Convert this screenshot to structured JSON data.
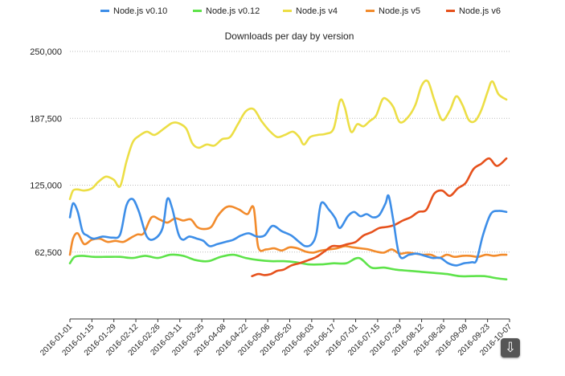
{
  "chart_data": {
    "type": "line",
    "title": "Downloads per day by version",
    "xlabel": "",
    "ylabel": "",
    "ylim": [
      0,
      250000
    ],
    "yticks": [
      62500,
      125000,
      187500,
      250000
    ],
    "ytick_labels": [
      "62,500",
      "125,000",
      "187,500",
      "250,000"
    ],
    "xlim": [
      "2016-01-01",
      "2016-10-07"
    ],
    "xtick_labels": [
      "2016-01-01",
      "2016-01-15",
      "2016-01-29",
      "2016-02-12",
      "2016-02-26",
      "2016-03-11",
      "2016-03-25",
      "2016-04-08",
      "2016-04-22",
      "2016-05-06",
      "2016-05-20",
      "2016-06-03",
      "2016-06-17",
      "2016-07-01",
      "2016-07-15",
      "2016-07-29",
      "2016-08-12",
      "2016-08-26",
      "2016-09-09",
      "2016-09-23",
      "2016-10-07"
    ],
    "grid": "horizontal dotted",
    "legend_position": "top",
    "series": [
      {
        "name": "Node.js v0.10",
        "color": "#3d8ee8",
        "x": [
          "2016-01-01",
          "2016-01-03",
          "2016-01-06",
          "2016-01-09",
          "2016-01-12",
          "2016-01-16",
          "2016-01-22",
          "2016-01-28",
          "2016-02-02",
          "2016-02-06",
          "2016-02-10",
          "2016-02-14",
          "2016-02-19",
          "2016-02-24",
          "2016-02-29",
          "2016-03-03",
          "2016-03-06",
          "2016-03-10",
          "2016-03-13",
          "2016-03-17",
          "2016-03-22",
          "2016-03-26",
          "2016-03-30",
          "2016-04-04",
          "2016-04-09",
          "2016-04-14",
          "2016-04-19",
          "2016-04-24",
          "2016-04-29",
          "2016-05-04",
          "2016-05-09",
          "2016-05-15",
          "2016-05-21",
          "2016-05-26",
          "2016-05-30",
          "2016-06-03",
          "2016-06-06",
          "2016-06-09",
          "2016-06-14",
          "2016-06-18",
          "2016-06-21",
          "2016-06-26",
          "2016-06-30",
          "2016-07-04",
          "2016-07-08",
          "2016-07-12",
          "2016-07-16",
          "2016-07-20",
          "2016-07-22",
          "2016-07-25",
          "2016-07-29",
          "2016-08-04",
          "2016-08-09",
          "2016-08-14",
          "2016-08-19",
          "2016-08-24",
          "2016-08-29",
          "2016-09-03",
          "2016-09-08",
          "2016-09-13",
          "2016-09-16",
          "2016-09-20",
          "2016-09-25",
          "2016-09-30",
          "2016-10-05"
        ],
        "y": [
          95000,
          108000,
          100000,
          82000,
          78000,
          75000,
          77000,
          76000,
          79000,
          106000,
          112000,
          100000,
          77000,
          75000,
          85000,
          112000,
          104000,
          80000,
          74000,
          77000,
          75000,
          73000,
          68000,
          70000,
          72000,
          74000,
          78000,
          80000,
          77000,
          78000,
          87000,
          82000,
          78000,
          72000,
          68000,
          70000,
          80000,
          108000,
          102000,
          94000,
          85000,
          96000,
          100000,
          96000,
          98000,
          95000,
          97000,
          108000,
          115000,
          92000,
          59000,
          60000,
          61000,
          59000,
          57000,
          57000,
          52000,
          50000,
          52000,
          53000,
          55000,
          78000,
          98000,
          101000,
          100000
        ]
      },
      {
        "name": "Node.js v0.12",
        "color": "#5ee34a",
        "x": [
          "2016-01-01",
          "2016-01-04",
          "2016-01-09",
          "2016-01-16",
          "2016-01-24",
          "2016-02-02",
          "2016-02-10",
          "2016-02-18",
          "2016-02-26",
          "2016-03-05",
          "2016-03-13",
          "2016-03-21",
          "2016-03-29",
          "2016-04-06",
          "2016-04-14",
          "2016-04-22",
          "2016-04-30",
          "2016-05-08",
          "2016-05-16",
          "2016-05-24",
          "2016-06-01",
          "2016-06-09",
          "2016-06-17",
          "2016-06-25",
          "2016-07-03",
          "2016-07-11",
          "2016-07-19",
          "2016-07-27",
          "2016-08-04",
          "2016-08-12",
          "2016-08-20",
          "2016-08-28",
          "2016-09-05",
          "2016-09-13",
          "2016-09-21",
          "2016-09-29",
          "2016-10-05"
        ],
        "y": [
          52000,
          58000,
          59000,
          58000,
          58000,
          58000,
          57000,
          59000,
          57000,
          60000,
          59000,
          55000,
          54000,
          58000,
          60000,
          57000,
          55000,
          54000,
          54000,
          53000,
          51000,
          51000,
          52000,
          52000,
          57000,
          48000,
          48000,
          46000,
          45000,
          44000,
          43000,
          42000,
          40000,
          40000,
          40000,
          38000,
          37000
        ]
      },
      {
        "name": "Node.js v4",
        "color": "#ecde45",
        "x": [
          "2016-01-01",
          "2016-01-03",
          "2016-01-06",
          "2016-01-10",
          "2016-01-15",
          "2016-01-19",
          "2016-01-24",
          "2016-01-29",
          "2016-02-02",
          "2016-02-06",
          "2016-02-10",
          "2016-02-14",
          "2016-02-19",
          "2016-02-24",
          "2016-03-01",
          "2016-03-06",
          "2016-03-10",
          "2016-03-15",
          "2016-03-19",
          "2016-03-23",
          "2016-03-28",
          "2016-04-02",
          "2016-04-07",
          "2016-04-12",
          "2016-04-17",
          "2016-04-22",
          "2016-04-27",
          "2016-05-02",
          "2016-05-07",
          "2016-05-12",
          "2016-05-17",
          "2016-05-22",
          "2016-05-26",
          "2016-05-29",
          "2016-06-02",
          "2016-06-07",
          "2016-06-12",
          "2016-06-17",
          "2016-06-21",
          "2016-06-24",
          "2016-06-28",
          "2016-07-02",
          "2016-07-06",
          "2016-07-10",
          "2016-07-14",
          "2016-07-18",
          "2016-07-21",
          "2016-07-25",
          "2016-07-29",
          "2016-08-03",
          "2016-08-08",
          "2016-08-12",
          "2016-08-16",
          "2016-08-20",
          "2016-08-25",
          "2016-08-30",
          "2016-09-03",
          "2016-09-07",
          "2016-09-11",
          "2016-09-15",
          "2016-09-19",
          "2016-09-23",
          "2016-09-26",
          "2016-09-30",
          "2016-10-05"
        ],
        "y": [
          112000,
          120000,
          121000,
          120000,
          122000,
          128000,
          133000,
          130000,
          124000,
          147000,
          165000,
          171000,
          175000,
          172000,
          178000,
          183000,
          183000,
          178000,
          164000,
          160000,
          163000,
          162000,
          168000,
          170000,
          182000,
          194000,
          196000,
          185000,
          176000,
          170000,
          172000,
          175000,
          170000,
          163000,
          170000,
          172000,
          173000,
          178000,
          204000,
          198000,
          175000,
          182000,
          180000,
          185000,
          190000,
          205000,
          205000,
          198000,
          184000,
          188000,
          200000,
          218000,
          222000,
          205000,
          186000,
          195000,
          208000,
          200000,
          186000,
          185000,
          195000,
          212000,
          222000,
          210000,
          205000
        ]
      },
      {
        "name": "Node.js v5",
        "color": "#f28b2c",
        "x": [
          "2016-01-01",
          "2016-01-03",
          "2016-01-06",
          "2016-01-10",
          "2016-01-15",
          "2016-01-20",
          "2016-01-25",
          "2016-01-30",
          "2016-02-04",
          "2016-02-09",
          "2016-02-13",
          "2016-02-17",
          "2016-02-22",
          "2016-02-27",
          "2016-03-03",
          "2016-03-08",
          "2016-03-13",
          "2016-03-18",
          "2016-03-22",
          "2016-03-26",
          "2016-03-31",
          "2016-04-04",
          "2016-04-09",
          "2016-04-13",
          "2016-04-18",
          "2016-04-23",
          "2016-04-27",
          "2016-04-30",
          "2016-05-05",
          "2016-05-10",
          "2016-05-15",
          "2016-05-20",
          "2016-05-25",
          "2016-05-30",
          "2016-06-04",
          "2016-06-09",
          "2016-06-14",
          "2016-06-19",
          "2016-06-24",
          "2016-06-29",
          "2016-07-04",
          "2016-07-09",
          "2016-07-14",
          "2016-07-19",
          "2016-07-24",
          "2016-07-29",
          "2016-08-03",
          "2016-08-08",
          "2016-08-13",
          "2016-08-18",
          "2016-08-23",
          "2016-08-28",
          "2016-09-02",
          "2016-09-07",
          "2016-09-12",
          "2016-09-17",
          "2016-09-22",
          "2016-09-27",
          "2016-10-02",
          "2016-10-05"
        ],
        "y": [
          60000,
          75000,
          80000,
          70000,
          74000,
          75000,
          72000,
          73000,
          72000,
          76000,
          79000,
          80000,
          95000,
          93000,
          90000,
          94000,
          92000,
          93000,
          86000,
          84000,
          86000,
          96000,
          104000,
          105000,
          102000,
          98000,
          104000,
          67000,
          65000,
          66000,
          64000,
          67000,
          66000,
          63000,
          62000,
          64000,
          65000,
          66000,
          68000,
          67000,
          66000,
          65000,
          63000,
          62000,
          65000,
          61000,
          62000,
          61000,
          60000,
          60000,
          57000,
          60000,
          58000,
          59000,
          59000,
          58000,
          60000,
          59000,
          60000,
          60000
        ]
      },
      {
        "name": "Node.js v6",
        "color": "#e6511c",
        "x": [
          "2016-04-26",
          "2016-04-30",
          "2016-05-04",
          "2016-05-08",
          "2016-05-12",
          "2016-05-16",
          "2016-05-21",
          "2016-05-26",
          "2016-06-01",
          "2016-06-06",
          "2016-06-11",
          "2016-06-16",
          "2016-06-21",
          "2016-06-26",
          "2016-07-01",
          "2016-07-06",
          "2016-07-11",
          "2016-07-16",
          "2016-07-21",
          "2016-07-26",
          "2016-07-31",
          "2016-08-05",
          "2016-08-10",
          "2016-08-15",
          "2016-08-20",
          "2016-08-25",
          "2016-08-30",
          "2016-09-04",
          "2016-09-09",
          "2016-09-14",
          "2016-09-19",
          "2016-09-24",
          "2016-09-29",
          "2016-10-05"
        ],
        "y": [
          40000,
          42000,
          41000,
          42000,
          45000,
          46000,
          50000,
          52000,
          55000,
          58000,
          63000,
          68000,
          68000,
          70000,
          72000,
          78000,
          81000,
          85000,
          86000,
          88000,
          92000,
          95000,
          100000,
          102000,
          117000,
          120000,
          115000,
          122000,
          127000,
          140000,
          145000,
          150000,
          143000,
          150000
        ]
      }
    ]
  },
  "ui": {
    "download_icon": "download-arrow-icon",
    "download_glyph": "⇩"
  }
}
